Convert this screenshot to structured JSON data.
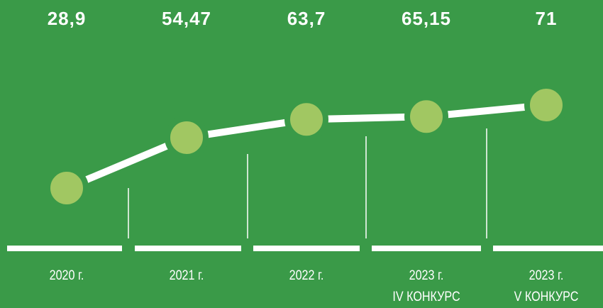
{
  "chart_data": {
    "type": "line",
    "categories": [
      "2020 г.",
      "2021 г.",
      "2022 г.",
      "2023 г.\nIV КОНКУРС",
      "2023 г.\nV КОНКУРС"
    ],
    "values": [
      28.9,
      54.47,
      63.7,
      65.15,
      71
    ],
    "value_labels": [
      "28,9",
      "54,47",
      "63,7",
      "65,15",
      "71"
    ],
    "color": "#a1c762"
  }
}
